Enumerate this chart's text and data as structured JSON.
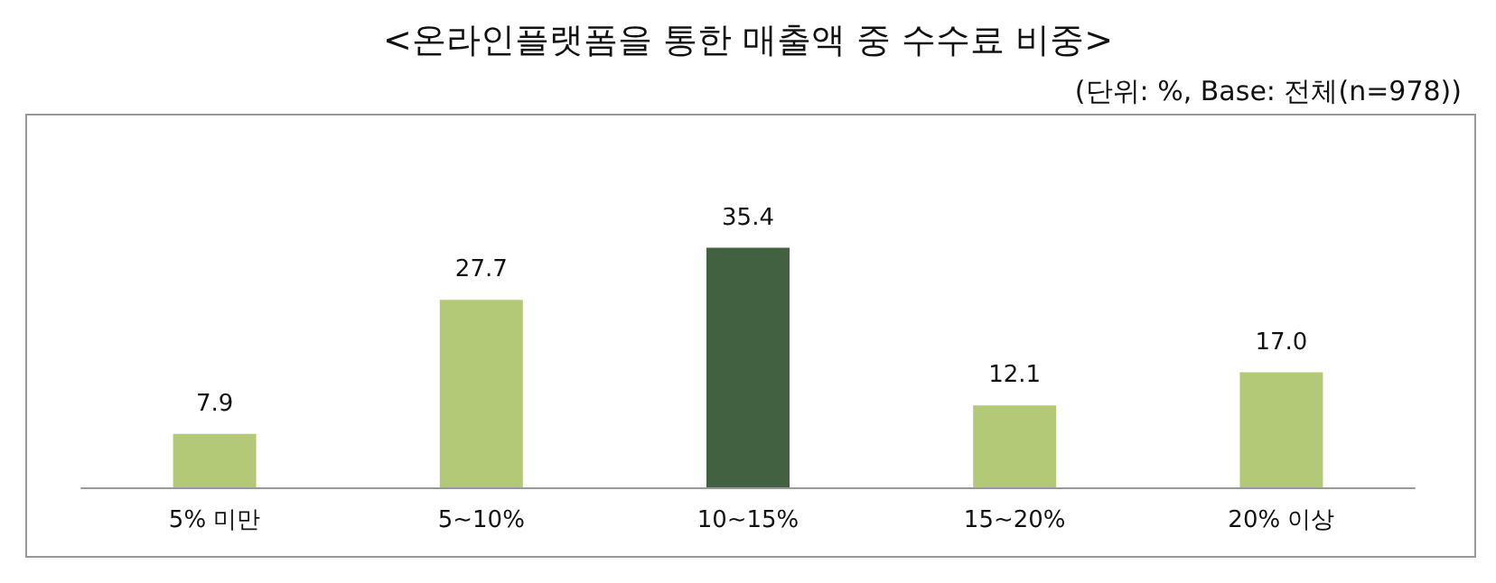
{
  "chart_data": {
    "type": "bar",
    "title": "<온라인플랫폼을 통한 매출액 중 수수료 비중>",
    "subtitle": "(단위: %, Base: 전체(n=978))",
    "categories": [
      "5% 미만",
      "5~10%",
      "10~15%",
      "15~20%",
      "20% 이상"
    ],
    "values": [
      7.9,
      27.7,
      35.4,
      12.1,
      17.0
    ],
    "value_labels": [
      "7.9",
      "27.7",
      "35.4",
      "12.1",
      "17.0"
    ],
    "colors": [
      "#b3c977",
      "#b3c977",
      "#426140",
      "#b3c977",
      "#b3c977"
    ]
  }
}
